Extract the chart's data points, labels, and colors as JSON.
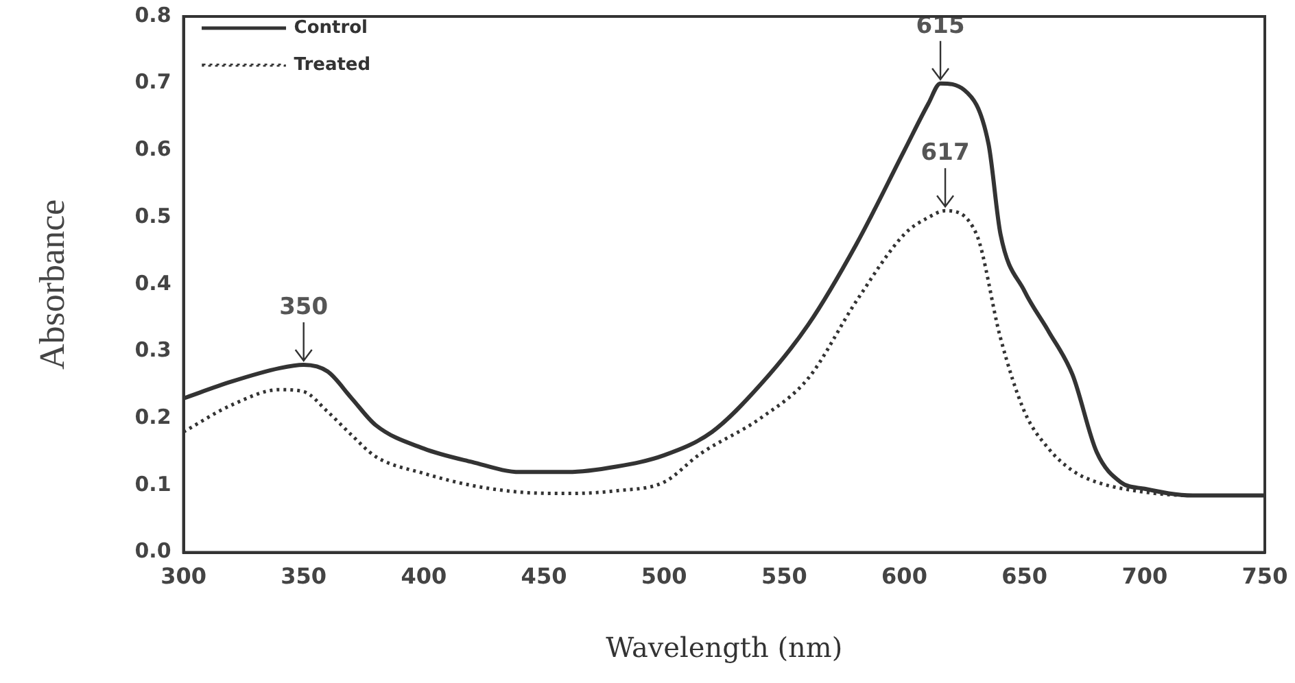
{
  "chart_data": {
    "type": "line",
    "xlabel": "Wavelength (nm)",
    "ylabel": "Absorbance",
    "xlim": [
      300,
      750
    ],
    "xticks": [
      300,
      350,
      400,
      450,
      500,
      550,
      600,
      650,
      700,
      750
    ],
    "ylim": [
      0,
      0.8
    ],
    "yticks": [
      {
        "value": 0,
        "label": "0.0"
      },
      0.1,
      0.2,
      0.3,
      0.4,
      0.5,
      0.6,
      0.7,
      0.8
    ],
    "grid": false,
    "legend": "top left",
    "marker": "none",
    "series": [
      {
        "name": "Control",
        "color": "#333333",
        "line_style": "solid",
        "x": [
          300,
          320,
          340,
          350,
          360,
          370,
          380,
          400,
          420,
          440,
          460,
          480,
          500,
          520,
          540,
          560,
          580,
          600,
          610,
          615,
          625,
          635,
          640,
          650,
          660,
          670,
          680,
          690,
          700,
          720,
          750
        ],
        "values": [
          0.23,
          0.255,
          0.275,
          0.28,
          0.27,
          0.23,
          0.19,
          0.155,
          0.135,
          0.12,
          0.12,
          0.128,
          0.145,
          0.18,
          0.25,
          0.34,
          0.46,
          0.6,
          0.67,
          0.7,
          0.69,
          0.61,
          0.475,
          0.39,
          0.33,
          0.265,
          0.15,
          0.105,
          0.095,
          0.085,
          0.085
        ]
      },
      {
        "name": "Treated",
        "color": "#333333",
        "line_style": "dotted",
        "x": [
          300,
          320,
          340,
          350,
          360,
          370,
          380,
          400,
          420,
          440,
          460,
          480,
          500,
          515,
          540,
          560,
          580,
          600,
          610,
          617,
          630,
          640,
          650,
          660,
          670,
          680,
          700,
          720,
          750
        ],
        "values": [
          0.18,
          0.22,
          0.243,
          0.24,
          0.21,
          0.175,
          0.143,
          0.118,
          0.1,
          0.09,
          0.088,
          0.092,
          0.105,
          0.147,
          0.2,
          0.26,
          0.375,
          0.475,
          0.5,
          0.51,
          0.475,
          0.32,
          0.21,
          0.155,
          0.122,
          0.105,
          0.09,
          0.085,
          0.085
        ]
      }
    ],
    "annotations": [
      {
        "text": "350",
        "x": 350,
        "y": 0.28
      },
      {
        "text": "615",
        "x": 615,
        "y": 0.7
      },
      {
        "text": "617",
        "x": 617,
        "y": 0.51
      }
    ]
  }
}
